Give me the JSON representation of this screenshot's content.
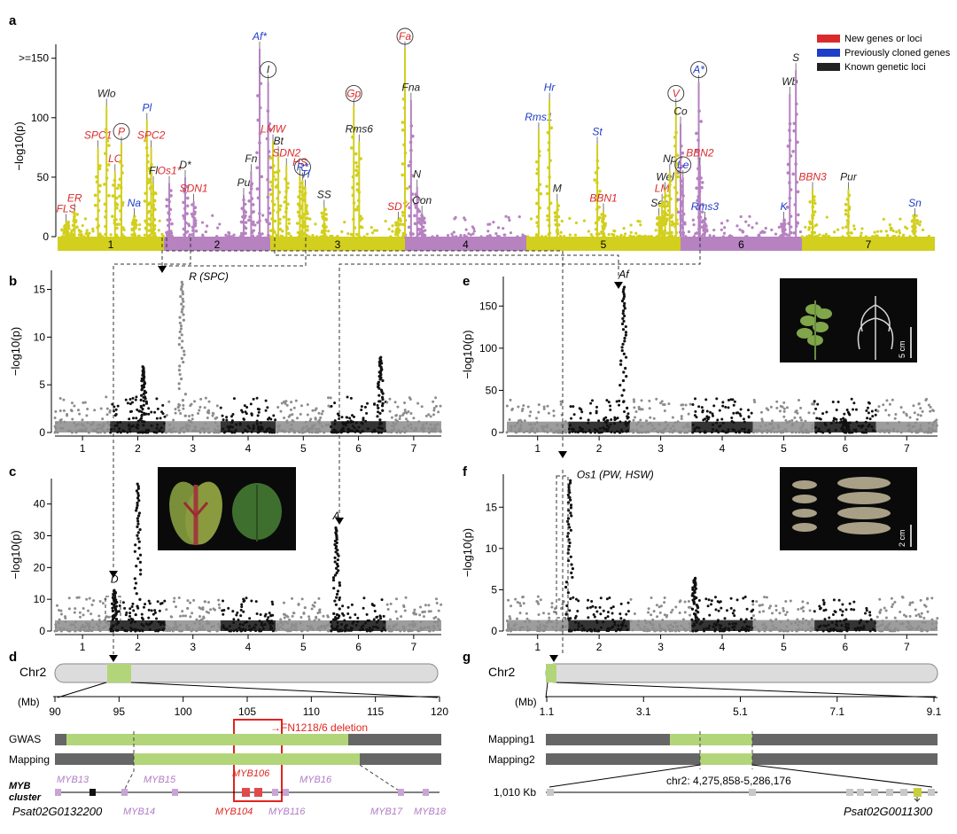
{
  "colors": {
    "new": "#d92b2b",
    "prev": "#1e3dc8",
    "known": "#222222",
    "yellow": "#d2cf1e",
    "purple": "#b682c0",
    "grey": "#8c8c8c",
    "black": "#111111",
    "green": "#b3d57a",
    "chrom": "#dcdcdc",
    "red": "#e0251f"
  },
  "chart_data": [
    {
      "panel": "a",
      "type": "scatter",
      "subtype": "manhattan",
      "ylabel": "−log10(p)",
      "yticks": [
        "0",
        "50",
        "100",
        ">=150"
      ],
      "ylim": [
        0,
        158
      ],
      "chromosomes": [
        "1",
        "2",
        "3",
        "4",
        "5",
        "6",
        "7"
      ],
      "legend": [
        {
          "label": "New genes or loci",
          "color": "new"
        },
        {
          "label": "Previously cloned genes",
          "color": "prev"
        },
        {
          "label": "Known genetic loci",
          "color": "known"
        }
      ],
      "loci": [
        {
          "label": "FLS",
          "cat": "new",
          "chr": 1,
          "pos": 0.08,
          "p": 13
        },
        {
          "label": "ER",
          "cat": "new",
          "chr": 1,
          "pos": 0.16,
          "p": 22
        },
        {
          "label": "SPC1",
          "cat": "new",
          "chr": 1,
          "pos": 0.38,
          "p": 75
        },
        {
          "label": "Wlo",
          "cat": "known",
          "chr": 1,
          "pos": 0.46,
          "p": 110
        },
        {
          "label": "LC",
          "cat": "new",
          "chr": 1,
          "pos": 0.54,
          "p": 55
        },
        {
          "label": "P",
          "cat": "new",
          "chr": 1,
          "pos": 0.6,
          "p": 78,
          "circled": true
        },
        {
          "label": "Na",
          "cat": "prev",
          "chr": 1,
          "pos": 0.72,
          "p": 18
        },
        {
          "label": "Pl",
          "cat": "prev",
          "chr": 1,
          "pos": 0.84,
          "p": 98
        },
        {
          "label": "SPC2",
          "cat": "new",
          "chr": 1,
          "pos": 0.88,
          "p": 75
        },
        {
          "label": "Fl",
          "cat": "known",
          "chr": 1,
          "pos": 0.9,
          "p": 45
        },
        {
          "label": "Os1*",
          "cat": "new",
          "chr": 2,
          "pos": 0.05,
          "p": 45
        },
        {
          "label": "D*",
          "cat": "known",
          "chr": 2,
          "pos": 0.2,
          "p": 50
        },
        {
          "label": "SDN1",
          "cat": "new",
          "chr": 2,
          "pos": 0.28,
          "p": 30
        },
        {
          "label": "Pu",
          "cat": "known",
          "chr": 2,
          "pos": 0.75,
          "p": 35
        },
        {
          "label": "Fn",
          "cat": "known",
          "chr": 2,
          "pos": 0.82,
          "p": 55
        },
        {
          "label": "Af*",
          "cat": "prev",
          "chr": 2,
          "pos": 0.9,
          "p": 158
        },
        {
          "label": "I",
          "cat": "known",
          "chr": 2,
          "pos": 0.98,
          "p": 130,
          "circled": true
        },
        {
          "label": "LMW",
          "cat": "new",
          "chr": 3,
          "pos": 0.02,
          "p": 80
        },
        {
          "label": "Bt",
          "cat": "known",
          "chr": 3,
          "pos": 0.06,
          "p": 70
        },
        {
          "label": "SDN2",
          "cat": "new",
          "chr": 3,
          "pos": 0.12,
          "p": 60
        },
        {
          "label": "HS",
          "cat": "new",
          "chr": 3,
          "pos": 0.22,
          "p": 52
        },
        {
          "label": "R*",
          "cat": "prev",
          "chr": 3,
          "pos": 0.24,
          "p": 48,
          "circled": true
        },
        {
          "label": "Tl",
          "cat": "prev",
          "chr": 3,
          "pos": 0.26,
          "p": 42
        },
        {
          "label": "SS",
          "cat": "known",
          "chr": 3,
          "pos": 0.4,
          "p": 25
        },
        {
          "label": "Gp",
          "cat": "new",
          "chr": 3,
          "pos": 0.62,
          "p": 110,
          "circled": true
        },
        {
          "label": "Rms6",
          "cat": "known",
          "chr": 3,
          "pos": 0.66,
          "p": 80
        },
        {
          "label": "SDY",
          "cat": "new",
          "chr": 3,
          "pos": 0.95,
          "p": 15
        },
        {
          "label": "Fa",
          "cat": "new",
          "chr": 3,
          "pos": 1.0,
          "p": 158,
          "circled": true
        },
        {
          "label": "Fna",
          "cat": "known",
          "chr": 4,
          "pos": 0.05,
          "p": 115
        },
        {
          "label": "N",
          "cat": "known",
          "chr": 4,
          "pos": 0.1,
          "p": 42
        },
        {
          "label": "Con",
          "cat": "known",
          "chr": 4,
          "pos": 0.14,
          "p": 20
        },
        {
          "label": "Rms1",
          "cat": "prev",
          "chr": 5,
          "pos": 0.08,
          "p": 90
        },
        {
          "label": "Hr",
          "cat": "prev",
          "chr": 5,
          "pos": 0.15,
          "p": 115
        },
        {
          "label": "M",
          "cat": "known",
          "chr": 5,
          "pos": 0.2,
          "p": 30
        },
        {
          "label": "St",
          "cat": "prev",
          "chr": 5,
          "pos": 0.46,
          "p": 78
        },
        {
          "label": "BBN1",
          "cat": "new",
          "chr": 5,
          "pos": 0.5,
          "p": 22
        },
        {
          "label": "Ser",
          "cat": "known",
          "chr": 5,
          "pos": 0.86,
          "p": 18
        },
        {
          "label": "LM",
          "cat": "new",
          "chr": 5,
          "pos": 0.88,
          "p": 30
        },
        {
          "label": "Wel",
          "cat": "known",
          "chr": 5,
          "pos": 0.9,
          "p": 40
        },
        {
          "label": "Np",
          "cat": "known",
          "chr": 5,
          "pos": 0.93,
          "p": 55
        },
        {
          "label": "V",
          "cat": "new",
          "chr": 5,
          "pos": 0.97,
          "p": 110,
          "circled": true
        },
        {
          "label": "Co",
          "cat": "known",
          "chr": 6,
          "pos": 0.0,
          "p": 95
        },
        {
          "label": "Le",
          "cat": "prev",
          "chr": 6,
          "pos": 0.02,
          "p": 50,
          "circled": true
        },
        {
          "label": "A*",
          "cat": "prev",
          "chr": 6,
          "pos": 0.15,
          "p": 130,
          "circled": true
        },
        {
          "label": "BBN2",
          "cat": "new",
          "chr": 6,
          "pos": 0.16,
          "p": 60
        },
        {
          "label": "Rms3",
          "cat": "prev",
          "chr": 6,
          "pos": 0.2,
          "p": 15
        },
        {
          "label": "K",
          "cat": "prev",
          "chr": 6,
          "pos": 0.85,
          "p": 15
        },
        {
          "label": "Wb",
          "cat": "known",
          "chr": 6,
          "pos": 0.9,
          "p": 120
        },
        {
          "label": "S",
          "cat": "known",
          "chr": 6,
          "pos": 0.95,
          "p": 140
        },
        {
          "label": "BBN3",
          "cat": "new",
          "chr": 7,
          "pos": 0.08,
          "p": 40
        },
        {
          "label": "Pur",
          "cat": "known",
          "chr": 7,
          "pos": 0.35,
          "p": 40
        },
        {
          "label": "Sn",
          "cat": "prev",
          "chr": 7,
          "pos": 0.85,
          "p": 18
        }
      ]
    },
    {
      "panel": "b",
      "type": "scatter",
      "subtype": "manhattan",
      "ylabel": "−log10(p)",
      "yticks": [
        "0",
        "5",
        "10",
        "15"
      ],
      "ylim": [
        0,
        17
      ],
      "chromosomes": [
        "1",
        "2",
        "3",
        "4",
        "5",
        "6",
        "7"
      ],
      "annotations": [
        {
          "text": "R (SPC)",
          "chr": 3,
          "value": 16
        }
      ],
      "peaks": [
        {
          "chr": 3,
          "pos": 0.3,
          "p": 16
        },
        {
          "chr": 2,
          "pos": 0.6,
          "p": 7
        },
        {
          "chr": 6,
          "pos": 0.9,
          "p": 8
        }
      ]
    },
    {
      "panel": "c",
      "type": "scatter",
      "subtype": "manhattan",
      "ylabel": "−log10(p)",
      "yticks": [
        "0",
        "10",
        "20",
        "30",
        "40"
      ],
      "ylim": [
        0,
        48
      ],
      "chromosomes": [
        "1",
        "2",
        "3",
        "4",
        "5",
        "6",
        "7"
      ],
      "annotations": [
        {
          "text": "D",
          "chr": 2,
          "value": 13
        },
        {
          "text": "A",
          "chr": 6,
          "value": 33
        }
      ],
      "peaks": [
        {
          "chr": 2,
          "pos": 0.08,
          "p": 13
        },
        {
          "chr": 6,
          "pos": 0.1,
          "p": 33
        },
        {
          "chr": 2,
          "pos": 0.5,
          "p": 47
        }
      ]
    },
    {
      "panel": "e",
      "type": "scatter",
      "subtype": "manhattan",
      "ylabel": "−log10(p)",
      "yticks": [
        "0",
        "50",
        "100",
        "150"
      ],
      "ylim": [
        0,
        185
      ],
      "chromosomes": [
        "1",
        "2",
        "3",
        "4",
        "5",
        "6",
        "7"
      ],
      "annotations": [
        {
          "text": "Af",
          "chr": 2,
          "value": 175
        }
      ],
      "peaks": [
        {
          "chr": 2,
          "pos": 0.9,
          "p": 175
        },
        {
          "chr": 6,
          "pos": 0.5,
          "p": 15
        }
      ]
    },
    {
      "panel": "f",
      "type": "scatter",
      "subtype": "manhattan",
      "ylabel": "−log10(p)",
      "yticks": [
        "0",
        "5",
        "10",
        "15"
      ],
      "ylim": [
        0,
        19
      ],
      "chromosomes": [
        "1",
        "2",
        "3",
        "4",
        "5",
        "6",
        "7"
      ],
      "annotations": [
        {
          "text": "Os1 (PW, HSW)",
          "chr": 2,
          "value": 18.5
        }
      ],
      "peaks": [
        {
          "chr": 2,
          "pos": 0.02,
          "p": 18.5
        },
        {
          "chr": 4,
          "pos": 0.05,
          "p": 6.5
        }
      ]
    }
  ],
  "panels": {
    "a": "a",
    "b": "b",
    "c": "c",
    "d": "d",
    "e": "e",
    "f": "f",
    "g": "g"
  },
  "scale_bars": {
    "e": "5 cm",
    "f": "2 cm"
  },
  "panel_d": {
    "chrom": "Chr2",
    "mb_label": "(Mb)",
    "ticks": [
      "90",
      "95",
      "100",
      "105",
      "110",
      "115",
      "120"
    ],
    "deletion": "FN1218/6 deletion",
    "tracks": [
      "GWAS",
      "Mapping"
    ],
    "cluster_label": [
      "MYB",
      "cluster"
    ],
    "genes_top": [
      "MYB13",
      "MYB15",
      "MYB106",
      "MYB16"
    ],
    "genes_bottom": [
      "MYB14",
      "MYB104",
      "MYB116",
      "MYB17",
      "MYB18"
    ],
    "gene_id": "Psat02G0132200"
  },
  "panel_g": {
    "chrom": "Chr2",
    "mb_label": "(Mb)",
    "ticks": [
      "1.1",
      "3.1",
      "5.1",
      "7.1",
      "9.1"
    ],
    "tracks": [
      "Mapping1",
      "Mapping2"
    ],
    "region": "chr2: 4,275,858-5,286,176",
    "size": "1,010 Kb",
    "gene_id": "Psat02G0011300"
  }
}
